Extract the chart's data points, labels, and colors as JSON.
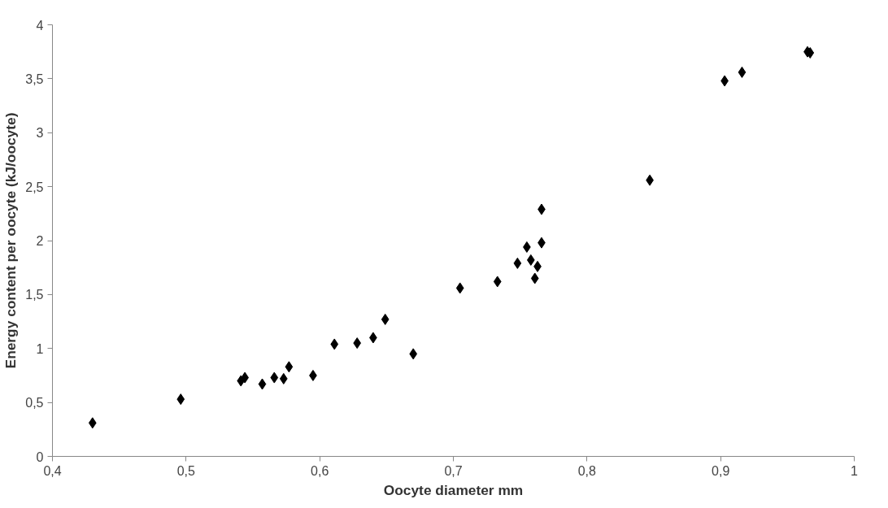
{
  "chart_data": {
    "type": "scatter",
    "xlabel": "Oocyte diameter mm",
    "ylabel": "Energy content per oocyte (kJ/oocyte)",
    "marker": "diamond",
    "grid": false,
    "xlim": [
      0.4,
      1.0
    ],
    "ylim": [
      0,
      4
    ],
    "xticks": [
      {
        "value": 0.4,
        "label": "0,4"
      },
      {
        "value": 0.5,
        "label": "0,5"
      },
      {
        "value": 0.6,
        "label": "0,6"
      },
      {
        "value": 0.7,
        "label": "0,7"
      },
      {
        "value": 0.8,
        "label": "0,8"
      },
      {
        "value": 0.9,
        "label": "0,9"
      },
      1
    ],
    "yticks": [
      0,
      {
        "value": 0.5,
        "label": "0,5"
      },
      1,
      {
        "value": 1.5,
        "label": "1,5"
      },
      2,
      {
        "value": 2.5,
        "label": "2,5"
      },
      3,
      {
        "value": 3.5,
        "label": "3,5"
      },
      4
    ],
    "series": [
      {
        "color": "#000000",
        "x": [
          0.43,
          0.496,
          0.541,
          0.544,
          0.557,
          0.566,
          0.573,
          0.577,
          0.595,
          0.611,
          0.628,
          0.64,
          0.649,
          0.67,
          0.705,
          0.733,
          0.748,
          0.755,
          0.758,
          0.761,
          0.763,
          0.766,
          0.766,
          0.847,
          0.903,
          0.916,
          0.965,
          0.967
        ],
        "values": [
          0.31,
          0.53,
          0.7,
          0.73,
          0.67,
          0.73,
          0.72,
          0.83,
          0.75,
          1.04,
          1.05,
          1.1,
          1.27,
          0.95,
          1.56,
          1.62,
          1.79,
          1.94,
          1.82,
          1.65,
          1.76,
          1.98,
          2.29,
          2.56,
          3.48,
          3.56,
          3.75,
          3.74
        ]
      }
    ]
  }
}
